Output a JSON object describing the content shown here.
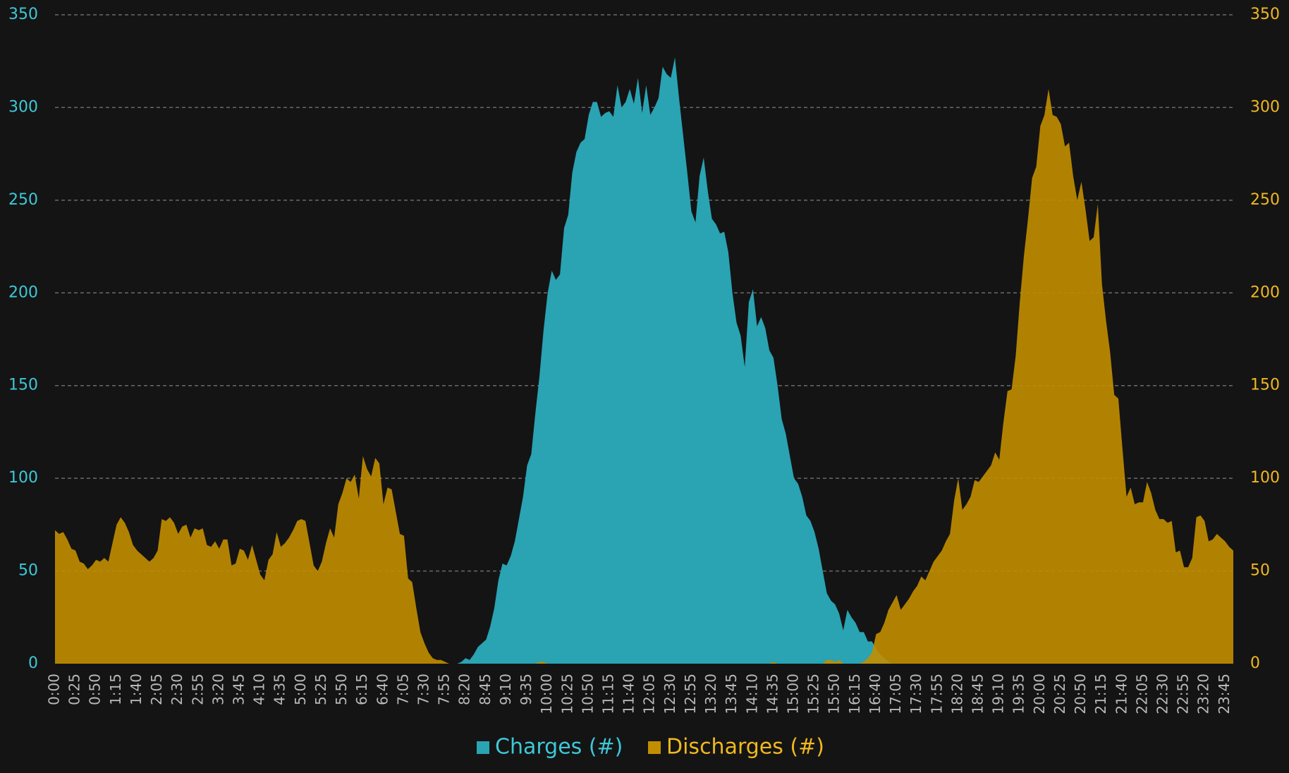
{
  "chart_data": {
    "type": "area",
    "categories": [
      "0:00",
      null,
      null,
      null,
      null,
      "0:25",
      null,
      null,
      null,
      null,
      "0:50",
      null,
      null,
      null,
      null,
      "1:15",
      null,
      null,
      null,
      null,
      "1:40",
      null,
      null,
      null,
      null,
      "2:05",
      null,
      null,
      null,
      null,
      "2:30",
      null,
      null,
      null,
      null,
      "2:55",
      null,
      null,
      null,
      null,
      "3:20",
      null,
      null,
      null,
      null,
      "3:45",
      null,
      null,
      null,
      null,
      "4:10",
      null,
      null,
      null,
      null,
      "4:35",
      null,
      null,
      null,
      null,
      "5:00",
      null,
      null,
      null,
      null,
      "5:25",
      null,
      null,
      null,
      null,
      "5:50",
      null,
      null,
      null,
      null,
      "6:15",
      null,
      null,
      null,
      null,
      "6:40",
      null,
      null,
      null,
      null,
      "7:05",
      null,
      null,
      null,
      null,
      "7:30",
      null,
      null,
      null,
      null,
      "7:55",
      null,
      null,
      null,
      null,
      "8:20",
      null,
      null,
      null,
      null,
      "8:45",
      null,
      null,
      null,
      null,
      "9:10",
      null,
      null,
      null,
      null,
      "9:35",
      null,
      null,
      null,
      null,
      "10:00",
      null,
      null,
      null,
      null,
      "10:25",
      null,
      null,
      null,
      null,
      "10:50",
      null,
      null,
      null,
      null,
      "11:15",
      null,
      null,
      null,
      null,
      "11:40",
      null,
      null,
      null,
      null,
      "12:05",
      null,
      null,
      null,
      null,
      "12:30",
      null,
      null,
      null,
      null,
      "12:55",
      null,
      null,
      null,
      null,
      "13:20",
      null,
      null,
      null,
      null,
      "13:45",
      null,
      null,
      null,
      null,
      "14:10",
      null,
      null,
      null,
      null,
      "14:35",
      null,
      null,
      null,
      null,
      "15:00",
      null,
      null,
      null,
      null,
      "15:25",
      null,
      null,
      null,
      null,
      "15:50",
      null,
      null,
      null,
      null,
      "16:15",
      null,
      null,
      null,
      null,
      "16:40",
      null,
      null,
      null,
      null,
      "17:05",
      null,
      null,
      null,
      null,
      "17:30",
      null,
      null,
      null,
      null,
      "17:55",
      null,
      null,
      null,
      null,
      "18:20",
      null,
      null,
      null,
      null,
      "18:45",
      null,
      null,
      null,
      null,
      "19:10",
      null,
      null,
      null,
      null,
      "19:35",
      null,
      null,
      null,
      null,
      "20:00",
      null,
      null,
      null,
      null,
      "20:25",
      null,
      null,
      null,
      null,
      "20:50",
      null,
      null,
      null,
      null,
      "21:15",
      null,
      null,
      null,
      null,
      "21:40",
      null,
      null,
      null,
      null,
      "22:05",
      null,
      null,
      null,
      null,
      "22:30",
      null,
      null,
      null,
      null,
      "22:55",
      null,
      null,
      null,
      null,
      "23:20",
      null,
      null,
      null,
      null,
      "23:45",
      null,
      null
    ],
    "series": [
      {
        "name": "Charges (#)",
        "color": "#2aa3b3",
        "label_color": "#3ec8d8",
        "axis": "y",
        "values": [
          0,
          0,
          0,
          0,
          0,
          0,
          0,
          0,
          0,
          0,
          0,
          0,
          0,
          0,
          0,
          0,
          0,
          0,
          0,
          0,
          0,
          0,
          0,
          0,
          0,
          0,
          0,
          0,
          0,
          0,
          0,
          0,
          0,
          0,
          0,
          0,
          0,
          0,
          0,
          0,
          0,
          0,
          0,
          0,
          0,
          0,
          0,
          0,
          0,
          0,
          0,
          0,
          0,
          0,
          0,
          0,
          0,
          0,
          0,
          0,
          0,
          0,
          0,
          0,
          0,
          0,
          0,
          0,
          0,
          0,
          0,
          0,
          0,
          0,
          0,
          0,
          0,
          0,
          0,
          0,
          0,
          0,
          0,
          0,
          0,
          0,
          0,
          0,
          0,
          0,
          0,
          0,
          0,
          0,
          0,
          0,
          0,
          0,
          0,
          1,
          3,
          2,
          5,
          9,
          11,
          13,
          20,
          30,
          45,
          54,
          53,
          58,
          66,
          78,
          90,
          107,
          113,
          135,
          155,
          180,
          200,
          212,
          207,
          210,
          235,
          242,
          265,
          276,
          281,
          283,
          296,
          303,
          303,
          295,
          297,
          298,
          295,
          312,
          300,
          303,
          310,
          302,
          316,
          297,
          312,
          296,
          300,
          305,
          322,
          318,
          316,
          327,
          305,
          285,
          265,
          244,
          238,
          263,
          273,
          255,
          240,
          237,
          232,
          233,
          222,
          200,
          184,
          177,
          160,
          195,
          202,
          182,
          187,
          181,
          169,
          165,
          150,
          132,
          124,
          112,
          100,
          97,
          90,
          80,
          77,
          71,
          62,
          50,
          38,
          34,
          32,
          27,
          18,
          29,
          25,
          22,
          17,
          17,
          12,
          12,
          8,
          5,
          3,
          1,
          0,
          0,
          0,
          0,
          0,
          0,
          0,
          0,
          0,
          0,
          0,
          0,
          0,
          0,
          0,
          0,
          0,
          0,
          0,
          0,
          0,
          0,
          0,
          0,
          0,
          0,
          0,
          0,
          0,
          0,
          0,
          0,
          0,
          0,
          0,
          0,
          0,
          0,
          0,
          0,
          0,
          0,
          0,
          0,
          0,
          0,
          0,
          0,
          0,
          0,
          0,
          0,
          0,
          0,
          0,
          0,
          0,
          0,
          0,
          0,
          0,
          0,
          0,
          0,
          0,
          0,
          0,
          0,
          0,
          0,
          0,
          0,
          0,
          0,
          0,
          0,
          0,
          0,
          0,
          0,
          0,
          0,
          0,
          0
        ]
      },
      {
        "name": "Discharges (#)",
        "color": "#c28e00",
        "label_color": "#f0b820",
        "axis": "y2",
        "values": [
          72,
          70,
          71,
          67,
          62,
          61,
          55,
          54,
          51,
          53,
          56,
          55,
          57,
          55,
          65,
          75,
          79,
          76,
          71,
          64,
          61,
          59,
          57,
          55,
          57,
          61,
          78,
          77,
          79,
          76,
          70,
          74,
          75,
          68,
          73,
          72,
          73,
          64,
          63,
          66,
          62,
          67,
          67,
          53,
          54,
          62,
          61,
          56,
          64,
          56,
          48,
          45,
          56,
          59,
          71,
          63,
          65,
          68,
          72,
          77,
          78,
          77,
          65,
          53,
          50,
          55,
          65,
          73,
          68,
          86,
          92,
          100,
          98,
          102,
          89,
          112,
          105,
          101,
          111,
          108,
          86,
          95,
          94,
          82,
          70,
          69,
          46,
          44,
          30,
          17,
          11,
          6,
          3,
          2,
          2,
          1,
          0,
          0,
          0,
          0,
          0,
          0,
          0,
          0,
          0,
          0,
          0,
          0,
          0,
          0,
          0,
          0,
          0,
          0,
          0,
          0,
          0,
          0,
          1,
          1,
          0,
          0,
          0,
          0,
          0,
          0,
          0,
          0,
          0,
          0,
          0,
          0,
          0,
          0,
          0,
          0,
          0,
          0,
          0,
          0,
          0,
          0,
          0,
          0,
          0,
          0,
          0,
          0,
          0,
          0,
          0,
          0,
          0,
          0,
          0,
          0,
          0,
          0,
          0,
          0,
          0,
          0,
          0,
          0,
          0,
          0,
          0,
          0,
          0,
          0,
          0,
          0,
          0,
          0,
          0,
          1,
          0,
          0,
          0,
          0,
          0,
          0,
          0,
          0,
          0,
          0,
          0,
          0,
          2,
          2,
          1,
          2,
          0,
          0,
          0,
          0,
          0,
          1,
          3,
          6,
          16,
          17,
          22,
          29,
          33,
          37,
          29,
          32,
          35,
          39,
          42,
          47,
          45,
          50,
          55,
          58,
          61,
          66,
          70,
          88,
          100,
          83,
          86,
          90,
          99,
          98,
          101,
          104,
          107,
          114,
          110,
          130,
          147,
          148,
          166,
          195,
          220,
          240,
          262,
          268,
          290,
          296,
          310,
          296,
          295,
          291,
          279,
          281,
          263,
          250,
          260,
          245,
          228,
          230,
          248,
          205,
          185,
          168,
          145,
          143,
          116,
          90,
          95,
          86,
          87,
          87,
          98,
          92,
          83,
          78,
          78,
          76,
          77,
          60,
          61,
          52,
          52,
          57,
          79,
          80,
          77,
          66,
          67,
          70,
          68,
          66,
          63,
          61
        ]
      }
    ],
    "ylim": [
      0,
      350
    ],
    "yticks": [
      0,
      50,
      100,
      150,
      200,
      250,
      300,
      350
    ],
    "y2lim": [
      0,
      350
    ],
    "y2ticks": [
      0,
      50,
      100,
      150,
      200,
      250,
      300,
      350
    ],
    "grid": true,
    "legend": "bottom"
  }
}
